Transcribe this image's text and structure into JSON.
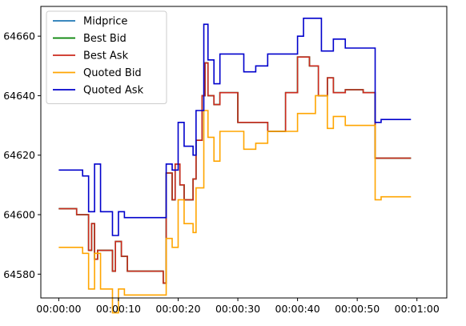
{
  "chart_data": {
    "type": "line",
    "title": "",
    "xlabel": "",
    "ylabel": "",
    "x_unit": "seconds",
    "xlim": [
      -3,
      65
    ],
    "ylim": [
      64572,
      64670
    ],
    "x_ticks": [
      {
        "value": 0,
        "label": "00:00:00"
      },
      {
        "value": 10,
        "label": "00:00:10"
      },
      {
        "value": 20,
        "label": "00:00:20"
      },
      {
        "value": 30,
        "label": "00:00:30"
      },
      {
        "value": 40,
        "label": "00:00:40"
      },
      {
        "value": 50,
        "label": "00:00:50"
      },
      {
        "value": 60,
        "label": "00:01:00"
      }
    ],
    "y_ticks": [
      {
        "value": 64580,
        "label": "64580"
      },
      {
        "value": 64600,
        "label": "64600"
      },
      {
        "value": 64620,
        "label": "64620"
      },
      {
        "value": 64640,
        "label": "64640"
      },
      {
        "value": 64660,
        "label": "64660"
      }
    ],
    "grid": false,
    "legend": "top-left",
    "series": [
      {
        "name": "Midprice",
        "color": "#1f77b4",
        "x": [
          0,
          3,
          3,
          5,
          5,
          5.5,
          5.5,
          6,
          6,
          6.5,
          6.5,
          9,
          9,
          9.5,
          9.5,
          10.5,
          10.5,
          11.5,
          11.5,
          17.5,
          17.5,
          18,
          18,
          19,
          19,
          19.5,
          19.5,
          20.3,
          20.3,
          21,
          21,
          22.5,
          22.5,
          23,
          23,
          24,
          24,
          24.5,
          24.5,
          25,
          25,
          26,
          26,
          27,
          27,
          30,
          30,
          35,
          35,
          38,
          38,
          40,
          40,
          42,
          42,
          43.5,
          43.5,
          45,
          45,
          46,
          46,
          48,
          48,
          51,
          51,
          53,
          53,
          59
        ],
        "y": [
          64602,
          64602,
          64600,
          64600,
          64588,
          64588,
          64597,
          64597,
          64585,
          64585,
          64588,
          64588,
          64581,
          64581,
          64591,
          64591,
          64586,
          64586,
          64581,
          64581,
          64577,
          64577,
          64614,
          64614,
          64605,
          64605,
          64617,
          64617,
          64610,
          64610,
          64605,
          64605,
          64612,
          64612,
          64625,
          64625,
          64640,
          64640,
          64651,
          64651,
          64640,
          64640,
          64637,
          64637,
          64641,
          64641,
          64631,
          64631,
          64628,
          64628,
          64641,
          64641,
          64653,
          64653,
          64650,
          64650,
          64640,
          64640,
          64646,
          64646,
          64641,
          64641,
          64642,
          64642,
          64641,
          64641,
          64619,
          64619
        ]
      },
      {
        "name": "Best Bid",
        "color": "#008000",
        "x": [
          0,
          3,
          3,
          5,
          5,
          5.5,
          5.5,
          6,
          6,
          6.5,
          6.5,
          9,
          9,
          9.5,
          9.5,
          10.5,
          10.5,
          11.5,
          11.5,
          17.5,
          17.5,
          18,
          18,
          19,
          19,
          19.5,
          19.5,
          20.3,
          20.3,
          21,
          21,
          22.5,
          22.5,
          23,
          23,
          24,
          24,
          24.5,
          24.5,
          25,
          25,
          26,
          26,
          27,
          27,
          30,
          30,
          35,
          35,
          38,
          38,
          40,
          40,
          42,
          42,
          43.5,
          43.5,
          45,
          45,
          46,
          46,
          48,
          48,
          51,
          51,
          53,
          53,
          59
        ],
        "y": [
          64602,
          64602,
          64600,
          64600,
          64588,
          64588,
          64597,
          64597,
          64585,
          64585,
          64588,
          64588,
          64581,
          64581,
          64591,
          64591,
          64586,
          64586,
          64581,
          64581,
          64577,
          64577,
          64614,
          64614,
          64605,
          64605,
          64617,
          64617,
          64610,
          64610,
          64605,
          64605,
          64612,
          64612,
          64625,
          64625,
          64640,
          64640,
          64651,
          64651,
          64640,
          64640,
          64637,
          64637,
          64641,
          64641,
          64631,
          64631,
          64628,
          64628,
          64641,
          64641,
          64653,
          64653,
          64650,
          64650,
          64640,
          64640,
          64646,
          64646,
          64641,
          64641,
          64642,
          64642,
          64641,
          64641,
          64619,
          64619
        ]
      },
      {
        "name": "Best Ask",
        "color": "#cc2a1d",
        "x": [
          0,
          3,
          3,
          5,
          5,
          5.5,
          5.5,
          6,
          6,
          6.5,
          6.5,
          9,
          9,
          9.5,
          9.5,
          10.5,
          10.5,
          11.5,
          11.5,
          17.5,
          17.5,
          18,
          18,
          19,
          19,
          19.5,
          19.5,
          20.3,
          20.3,
          21,
          21,
          22.5,
          22.5,
          23,
          23,
          24,
          24,
          24.5,
          24.5,
          25,
          25,
          26,
          26,
          27,
          27,
          30,
          30,
          35,
          35,
          38,
          38,
          40,
          40,
          42,
          42,
          43.5,
          43.5,
          45,
          45,
          46,
          46,
          48,
          48,
          51,
          51,
          53,
          53,
          59
        ],
        "y": [
          64602,
          64602,
          64600,
          64600,
          64588,
          64588,
          64597,
          64597,
          64585,
          64585,
          64588,
          64588,
          64581,
          64581,
          64591,
          64591,
          64586,
          64586,
          64581,
          64581,
          64577,
          64577,
          64614,
          64614,
          64605,
          64605,
          64617,
          64617,
          64610,
          64610,
          64605,
          64605,
          64612,
          64612,
          64625,
          64625,
          64640,
          64640,
          64651,
          64651,
          64640,
          64640,
          64637,
          64637,
          64641,
          64641,
          64631,
          64631,
          64628,
          64628,
          64641,
          64641,
          64653,
          64653,
          64650,
          64650,
          64640,
          64640,
          64646,
          64646,
          64641,
          64641,
          64642,
          64642,
          64641,
          64641,
          64619,
          64619
        ]
      },
      {
        "name": "Quoted Bid",
        "color": "#ffa500",
        "x": [
          0,
          4,
          4,
          5,
          5,
          6,
          6,
          7,
          7,
          9,
          9,
          10,
          10,
          11,
          11,
          18,
          18,
          19,
          19,
          20,
          20,
          21,
          21,
          22.5,
          22.5,
          23,
          23,
          24.3,
          24.3,
          25,
          25,
          26,
          26,
          27,
          27,
          31,
          31,
          33,
          33,
          35,
          35,
          38,
          38,
          40,
          40,
          43,
          43,
          45,
          45,
          46,
          46,
          48,
          48,
          53,
          53,
          54,
          54,
          59
        ],
        "y": [
          64589,
          64589,
          64587,
          64587,
          64575,
          64575,
          64587,
          64587,
          64575,
          64575,
          64567,
          64567,
          64575,
          64575,
          64573,
          64573,
          64592,
          64592,
          64589,
          64589,
          64605,
          64605,
          64597,
          64597,
          64594,
          64594,
          64609,
          64609,
          64635,
          64635,
          64626,
          64626,
          64618,
          64618,
          64628,
          64628,
          64622,
          64622,
          64624,
          64624,
          64628,
          64628,
          64628,
          64628,
          64634,
          64634,
          64640,
          64640,
          64629,
          64629,
          64633,
          64633,
          64630,
          64630,
          64605,
          64605,
          64606,
          64606
        ]
      },
      {
        "name": "Quoted Ask",
        "color": "#0000cc",
        "x": [
          0,
          4,
          4,
          5,
          5,
          6,
          6,
          7,
          7,
          9,
          9,
          10,
          10,
          11,
          11,
          18,
          18,
          19,
          19,
          20,
          20,
          21,
          21,
          22.5,
          22.5,
          23,
          23,
          24.3,
          24.3,
          25,
          25,
          26,
          26,
          27,
          27,
          31,
          31,
          33,
          33,
          35,
          35,
          38,
          38,
          40,
          40,
          41,
          41,
          44,
          44,
          46,
          46,
          48,
          48,
          53,
          53,
          54,
          54,
          59
        ],
        "y": [
          64615,
          64615,
          64613,
          64613,
          64601,
          64601,
          64617,
          64617,
          64601,
          64601,
          64593,
          64593,
          64601,
          64601,
          64599,
          64599,
          64617,
          64617,
          64615,
          64615,
          64631,
          64631,
          64623,
          64623,
          64620,
          64620,
          64635,
          64635,
          64664,
          64664,
          64652,
          64652,
          64644,
          64644,
          64654,
          64654,
          64648,
          64648,
          64650,
          64650,
          64654,
          64654,
          64654,
          64654,
          64660,
          64660,
          64666,
          64666,
          64655,
          64655,
          64659,
          64659,
          64656,
          64656,
          64631,
          64631,
          64632,
          64632
        ]
      }
    ]
  }
}
